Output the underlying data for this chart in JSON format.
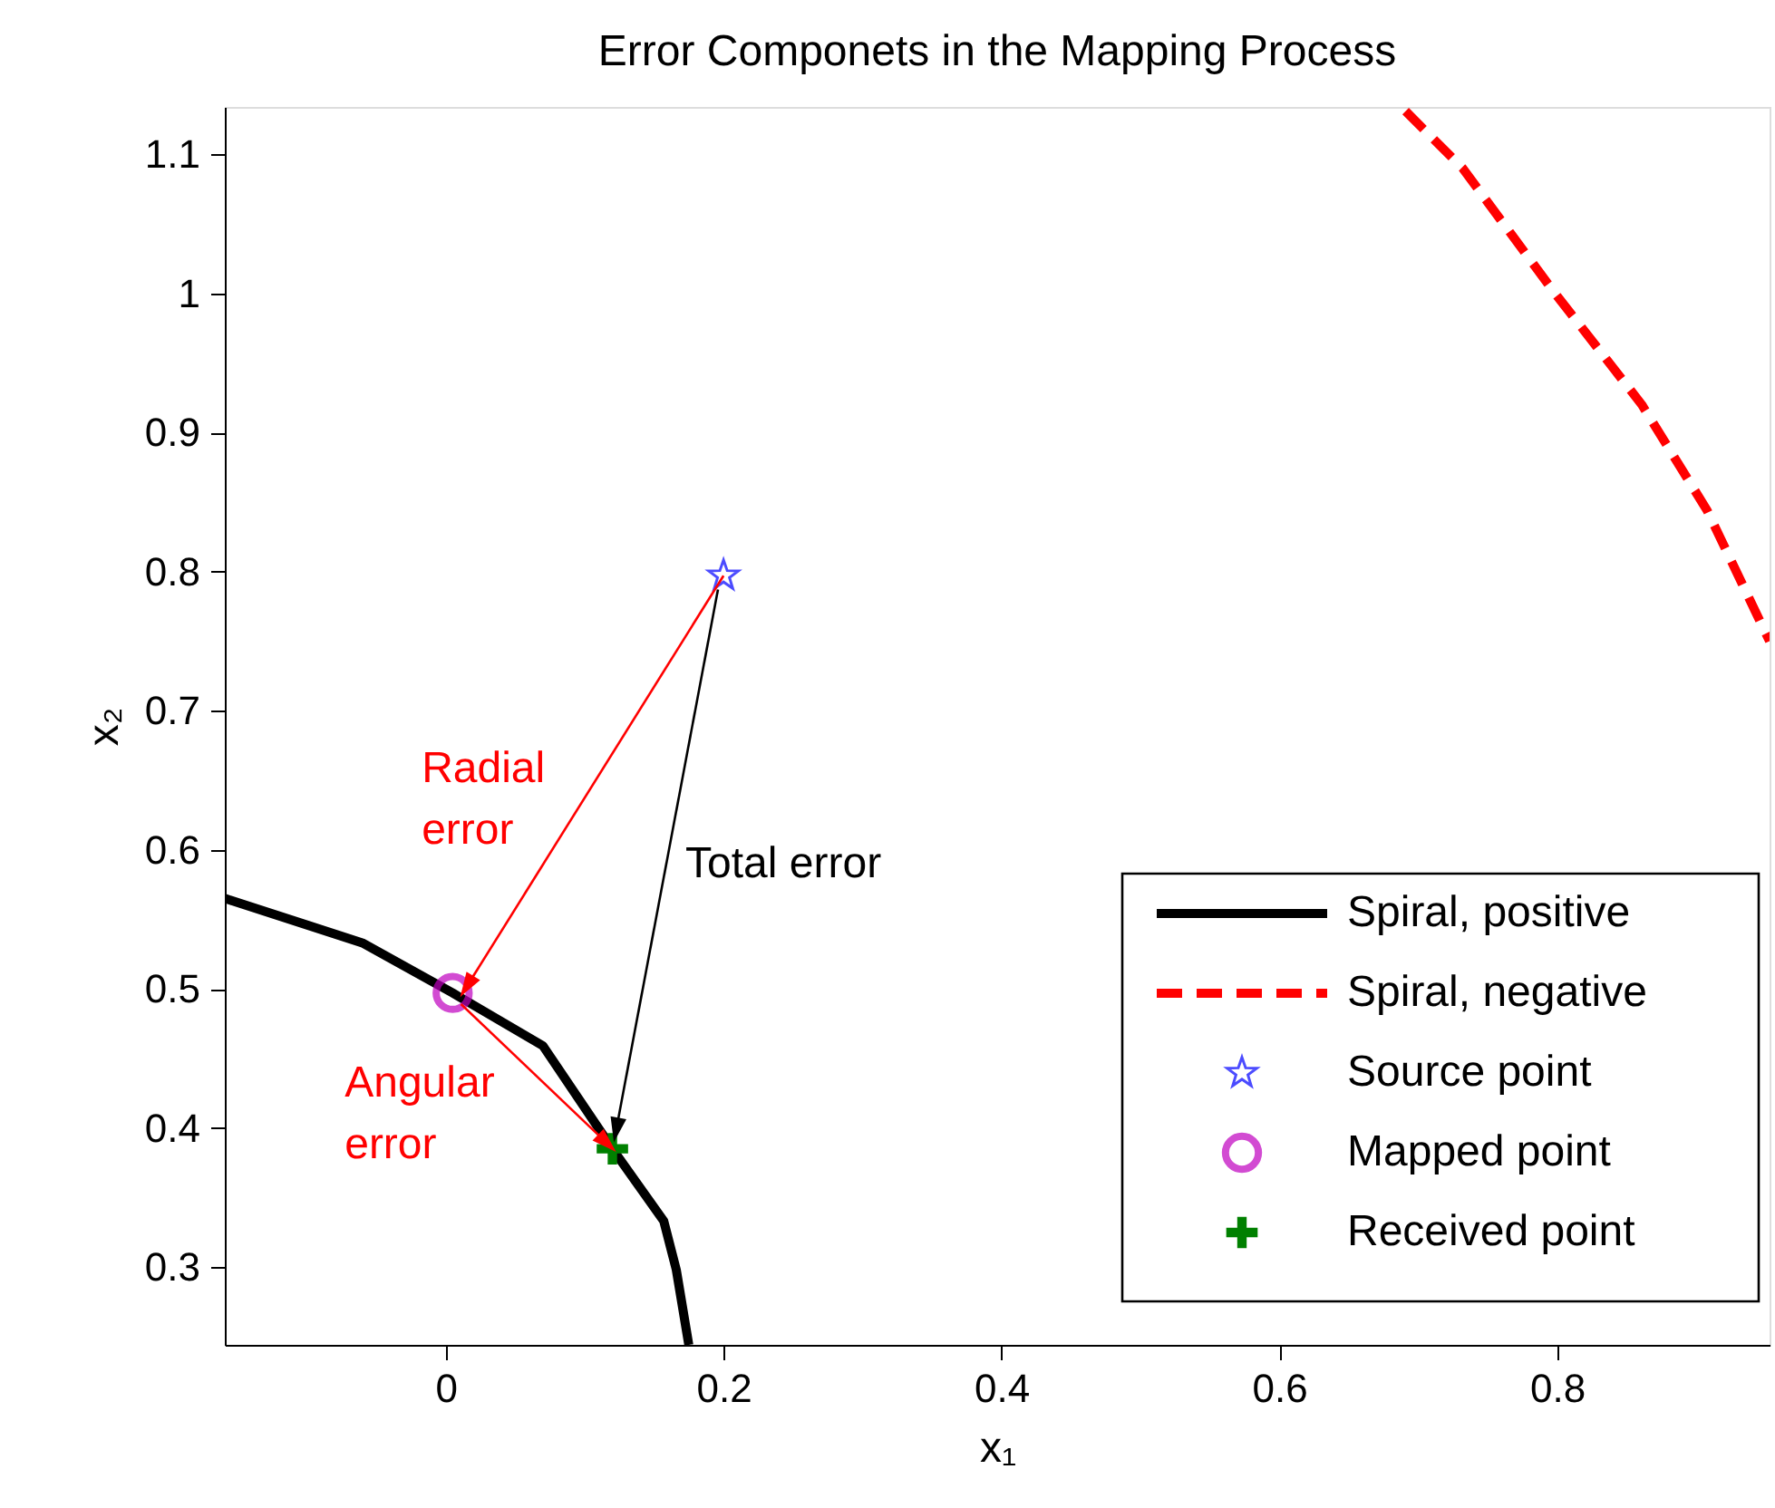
{
  "chart_data": {
    "type": "line",
    "title": "Error Componets in the Mapping Process",
    "xlabel": "x₁",
    "ylabel": "x₂",
    "xlim": [
      -0.159,
      0.953
    ],
    "ylim": [
      0.244,
      1.134
    ],
    "xticks": [
      0,
      0.2,
      0.4,
      0.6,
      0.8
    ],
    "yticks": [
      0.3,
      0.4,
      0.5,
      0.6,
      0.7,
      0.8,
      0.9,
      1,
      1.1
    ],
    "grid": false,
    "legend": "bottom right",
    "series": [
      {
        "name": "Spiral, positive",
        "color": "#000000",
        "line_style": "solid",
        "marker": "none",
        "x": [
          -0.159,
          -0.06,
          0.005,
          0.07,
          0.12,
          0.157,
          0.166,
          0.175
        ],
        "values": [
          0.565,
          0.533,
          0.497,
          0.459,
          0.385,
          0.333,
          0.298,
          0.244
        ]
      },
      {
        "name": "Spiral, negative",
        "color": "#ff0000",
        "line_style": "dashed",
        "marker": "none",
        "x": [
          0.691,
          0.732,
          0.797,
          0.861,
          0.908,
          0.953
        ],
        "values": [
          1.131,
          1.09,
          1.002,
          0.92,
          0.844,
          0.75
        ]
      },
      {
        "name": "Source point",
        "type": "scatter",
        "color": "#0000ff",
        "marker": "star",
        "x": [
          0.2
        ],
        "values": [
          0.797
        ]
      },
      {
        "name": "Mapped point",
        "type": "scatter",
        "color": "#bf00bf",
        "marker": "circle",
        "x": [
          0.005
        ],
        "values": [
          0.497
        ]
      },
      {
        "name": "Received point",
        "type": "scatter",
        "color": "#008000",
        "marker": "cross",
        "x": [
          0.12
        ],
        "values": [
          0.385
        ]
      },
      {
        "color": "#ff0000",
        "line_style": "solid",
        "marker": "triangle",
        "x": [
          0.2,
          0.016
        ],
        "values": [
          0.797,
          0.503
        ]
      },
      {
        "color": "#ff0000",
        "line_style": "solid",
        "marker": "triangle",
        "x": [
          0.011,
          0.115
        ],
        "values": [
          0.489,
          0.39
        ]
      },
      {
        "color": "#000000",
        "line_style": "solid",
        "marker": "triangle",
        "x": [
          0.196,
          0.123
        ],
        "values": [
          0.787,
          0.4
        ]
      }
    ],
    "annotations": [
      "Radial\nerror",
      "Angular\nerror",
      "Total error"
    ]
  }
}
